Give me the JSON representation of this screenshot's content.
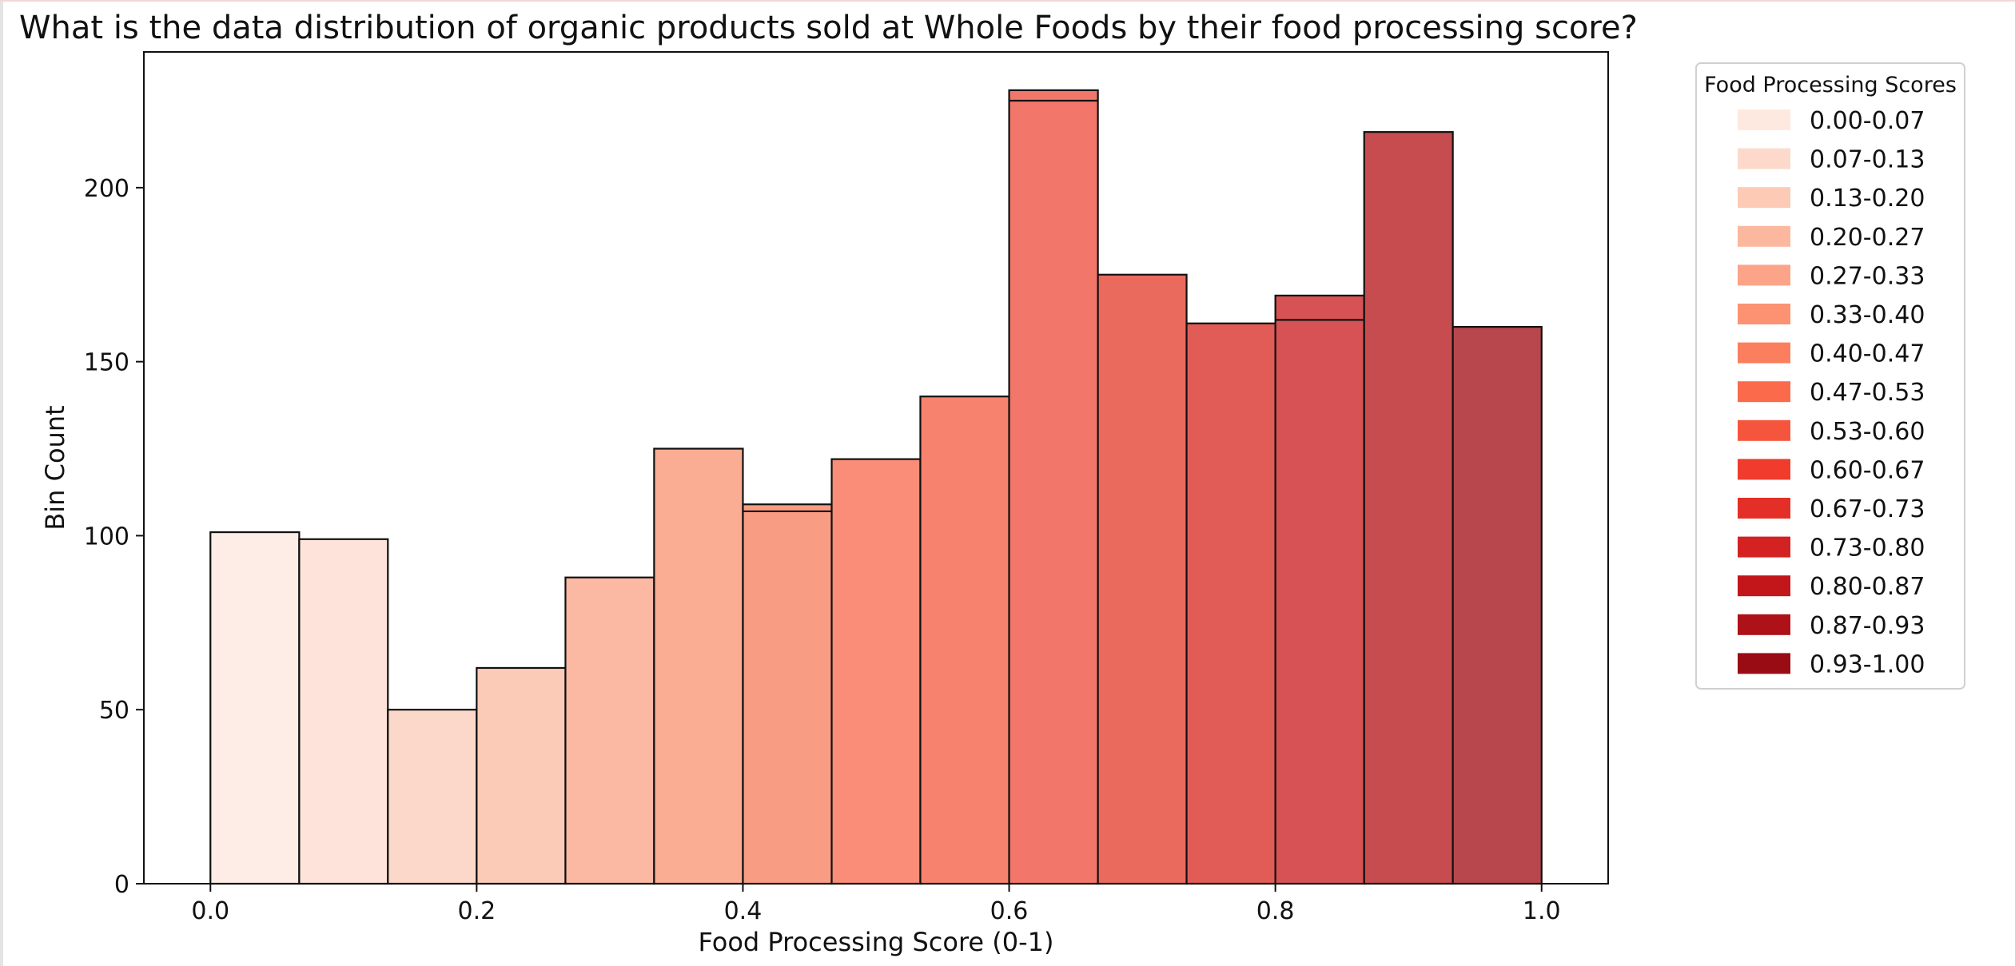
{
  "chart_data": {
    "type": "bar",
    "title": "What is the data distribution of organic products sold at Whole Foods by their food processing score?",
    "xlabel": "Food Processing Score (0-1)",
    "ylabel": "Bin Count",
    "xlim": [
      -0.05,
      1.05
    ],
    "ylim": [
      0,
      239
    ],
    "xticks": [
      "0.0",
      "0.2",
      "0.4",
      "0.6",
      "0.8",
      "1.0"
    ],
    "yticks": [
      "0",
      "50",
      "100",
      "150",
      "200"
    ],
    "bins": [
      {
        "range": [
          0.0,
          0.0667
        ],
        "count": 101
      },
      {
        "range": [
          0.0667,
          0.1333
        ],
        "count": 99
      },
      {
        "range": [
          0.1333,
          0.2
        ],
        "count": 50
      },
      {
        "range": [
          0.2,
          0.2667
        ],
        "count": 62
      },
      {
        "range": [
          0.2667,
          0.3333
        ],
        "count": 88
      },
      {
        "range": [
          0.3333,
          0.4
        ],
        "count": 125
      },
      {
        "range": [
          0.4,
          0.4667
        ],
        "count": 109,
        "inner_line": 107
      },
      {
        "range": [
          0.4667,
          0.5333
        ],
        "count": 122
      },
      {
        "range": [
          0.5333,
          0.6
        ],
        "count": 140
      },
      {
        "range": [
          0.6,
          0.6667
        ],
        "count": 228,
        "inner_line": 225
      },
      {
        "range": [
          0.6667,
          0.7333
        ],
        "count": 175
      },
      {
        "range": [
          0.7333,
          0.8
        ],
        "count": 161
      },
      {
        "range": [
          0.8,
          0.8667
        ],
        "count": 169,
        "inner_line": 162
      },
      {
        "range": [
          0.8667,
          0.9333
        ],
        "count": 216
      },
      {
        "range": [
          0.9333,
          1.0
        ],
        "count": 160
      }
    ],
    "bar_colors": [
      "#fdede6",
      "#fde3d9",
      "#fcd8cb",
      "#fccbb8",
      "#fbb8a2",
      "#fbad94",
      "#f99c84",
      "#f98d77",
      "#f7836e",
      "#f2776a",
      "#ea6a5e",
      "#e15c57",
      "#d65254",
      "#c64c50",
      "#b7474c"
    ],
    "legend": {
      "title": "Food Processing Scores",
      "placement": "upper right, outside plot",
      "entries": [
        "0.00-0.07",
        "0.07-0.13",
        "0.13-0.20",
        "0.20-0.27",
        "0.27-0.33",
        "0.33-0.40",
        "0.40-0.47",
        "0.47-0.53",
        "0.53-0.60",
        "0.60-0.67",
        "0.67-0.73",
        "0.73-0.80",
        "0.80-0.87",
        "0.87-0.93",
        "0.93-1.00"
      ],
      "colors": [
        "#fee9e0",
        "#fdd9cc",
        "#fdcab5",
        "#fcb89e",
        "#fca487",
        "#fc9272",
        "#fb7f5f",
        "#fa6a4b",
        "#f6553d",
        "#ef3c2d",
        "#e32f27",
        "#d42121",
        "#c2161b",
        "#ae1118",
        "#9a0c14"
      ]
    },
    "grid": false
  }
}
